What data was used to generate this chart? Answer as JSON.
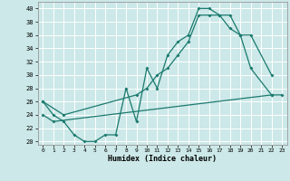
{
  "xlabel": "Humidex (Indice chaleur)",
  "bg_color": "#cce8e8",
  "grid_color": "#ffffff",
  "line_color": "#1a7a6e",
  "xlim": [
    -0.5,
    23.5
  ],
  "ylim": [
    19.5,
    41
  ],
  "yticks": [
    20,
    22,
    24,
    26,
    28,
    30,
    32,
    34,
    36,
    38,
    40
  ],
  "xticks": [
    0,
    1,
    2,
    3,
    4,
    5,
    6,
    7,
    8,
    9,
    10,
    11,
    12,
    13,
    14,
    15,
    16,
    17,
    18,
    19,
    20,
    21,
    22,
    23
  ],
  "line1_x": [
    0,
    1,
    2,
    3,
    4,
    5,
    6,
    7,
    8,
    9,
    10,
    11,
    12,
    13,
    14,
    15,
    16,
    17,
    18,
    19,
    20,
    22
  ],
  "line1_y": [
    26,
    24,
    23,
    21,
    20,
    20,
    21,
    21,
    28,
    23,
    31,
    28,
    33,
    35,
    36,
    40,
    40,
    39,
    39,
    36,
    31,
    27
  ],
  "line2_x": [
    0,
    2,
    9,
    10,
    11,
    12,
    13,
    14,
    15,
    16,
    17,
    18,
    19,
    20,
    22
  ],
  "line2_y": [
    26,
    24,
    27,
    28,
    30,
    31,
    33,
    35,
    39,
    39,
    39,
    37,
    36,
    36,
    30
  ],
  "line3_x": [
    0,
    1,
    22,
    23
  ],
  "line3_y": [
    24,
    23,
    27,
    27
  ]
}
